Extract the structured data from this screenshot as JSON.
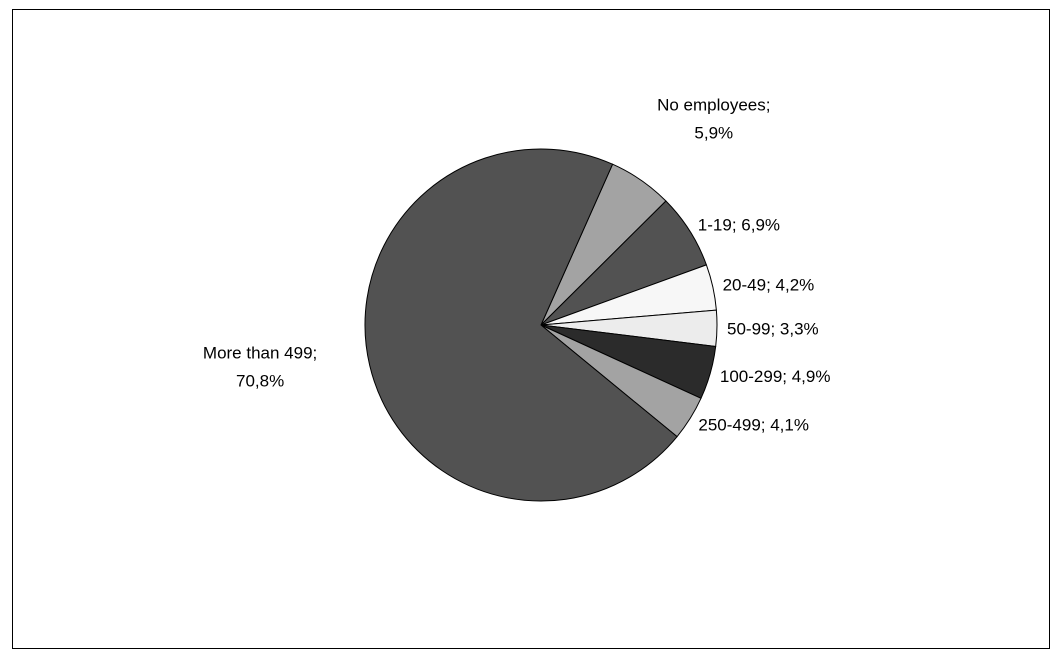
{
  "chart_data": {
    "type": "pie",
    "title": "",
    "start_angle_deg": 24,
    "direction": "clockwise",
    "labels_shown": "category; percent",
    "slices": [
      {
        "category": "No employees",
        "value": 5.9,
        "label": "5,9%",
        "color": "#a3a3a3"
      },
      {
        "category": "1-19",
        "value": 6.9,
        "label": "6,9%",
        "color": "#525252"
      },
      {
        "category": "20-49",
        "value": 4.2,
        "label": "4,2%",
        "color": "#f7f7f7"
      },
      {
        "category": "50-99",
        "value": 3.3,
        "label": "3,3%",
        "color": "#ececec"
      },
      {
        "category": "100-299",
        "value": 4.9,
        "label": "4,9%",
        "color": "#2b2b2b"
      },
      {
        "category": "250-499",
        "value": 4.1,
        "label": "4,1%",
        "color": "#a3a3a3"
      },
      {
        "category": "More than 499",
        "value": 70.8,
        "label": "70,8%",
        "color": "#525252"
      }
    ]
  }
}
